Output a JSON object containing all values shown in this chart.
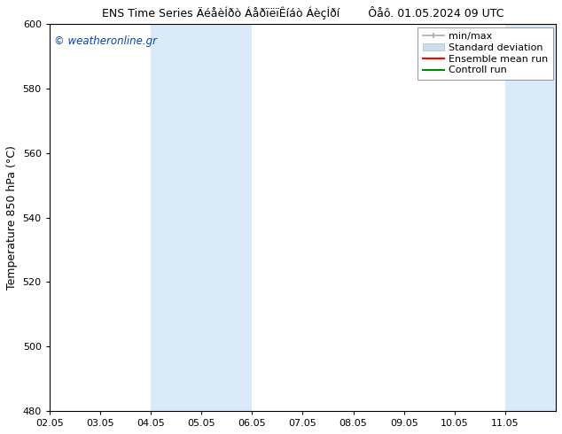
{
  "title_left": "ENS Time Series ÄéåèÍðò ÁåðïëïÊíáò ÁèçÍðí",
  "title_right": "Ôåô. 01.05.2024 09 UTC",
  "ylabel": "Temperature 850 hPa (°C)",
  "watermark": "© weatheronline.gr",
  "xlim": [
    0,
    10
  ],
  "ylim": [
    480,
    600
  ],
  "yticks": [
    480,
    500,
    520,
    540,
    560,
    580,
    600
  ],
  "xtick_positions": [
    0,
    1,
    2,
    3,
    4,
    5,
    6,
    7,
    8,
    9
  ],
  "xtick_labels": [
    "02.05",
    "03.05",
    "04.05",
    "05.05",
    "06.05",
    "07.05",
    "08.05",
    "09.05",
    "10.05",
    "11.05"
  ],
  "shaded_bands": [
    {
      "x_start": 2,
      "x_end": 4,
      "color": "#daeaf8"
    },
    {
      "x_start": 9,
      "x_end": 10,
      "color": "#daeaf8"
    }
  ],
  "legend_items": [
    {
      "label": "min/max"
    },
    {
      "label": "Standard deviation"
    },
    {
      "label": "Ensemble mean run"
    },
    {
      "label": "Controll run"
    }
  ],
  "minmax_color": "#aaaaaa",
  "std_color": "#c8dff0",
  "ensemble_color": "#ff0000",
  "control_color": "#008800",
  "bg_color": "#ffffff",
  "watermark_color": "#0044bb",
  "title_fontsize": 9,
  "legend_fontsize": 8,
  "ylabel_fontsize": 9,
  "tick_fontsize": 8
}
